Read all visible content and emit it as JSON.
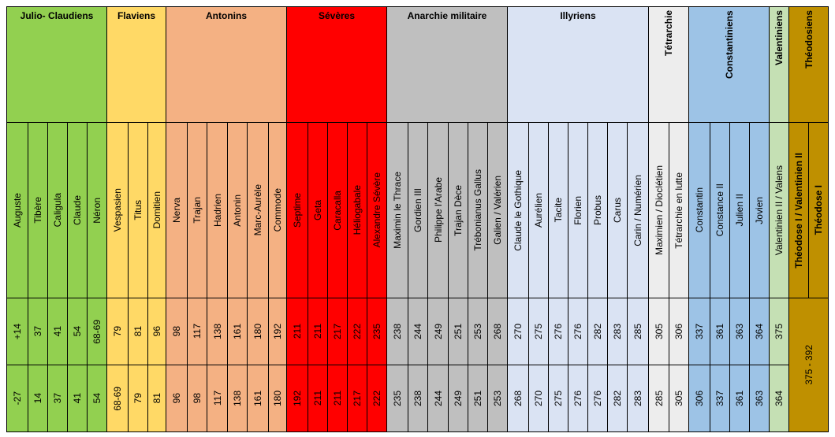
{
  "table": {
    "groups": [
      {
        "name": "Julio- Claudiens",
        "color": "#92d050",
        "rotated": false,
        "emperors": [
          {
            "name": "Auguste",
            "end": "+14",
            "start": "-27"
          },
          {
            "name": "Tibère",
            "end": "37",
            "start": "14"
          },
          {
            "name": "Caligula",
            "end": "41",
            "start": "37"
          },
          {
            "name": "Claude",
            "end": "54",
            "start": "41"
          },
          {
            "name": "Néron",
            "end": "68-69",
            "start": "54"
          }
        ]
      },
      {
        "name": "Flaviens",
        "color": "#ffd966",
        "rotated": false,
        "emperors": [
          {
            "name": "Vespasien",
            "end": "79",
            "start": "68-69"
          },
          {
            "name": "Titus",
            "end": "81",
            "start": "79"
          },
          {
            "name": "Domitien",
            "end": "96",
            "start": "81"
          }
        ]
      },
      {
        "name": "Antonins",
        "color": "#f4b183",
        "rotated": false,
        "emperors": [
          {
            "name": "Nerva",
            "end": "98",
            "start": "96"
          },
          {
            "name": "Trajan",
            "end": "117",
            "start": "98"
          },
          {
            "name": "Hadrien",
            "end": "138",
            "start": "117"
          },
          {
            "name": "Antonin",
            "end": "161",
            "start": "138"
          },
          {
            "name": "Marc-Aurèle",
            "end": "180",
            "start": "161"
          },
          {
            "name": "Commode",
            "end": "192",
            "start": "180"
          }
        ]
      },
      {
        "name": "Sévères",
        "color": "#ff0000",
        "rotated": false,
        "emperors": [
          {
            "name": "Septime",
            "end": "211",
            "start": "192"
          },
          {
            "name": "Geta",
            "end": "211",
            "start": "211"
          },
          {
            "name": "Caracalla",
            "end": "217",
            "start": "211"
          },
          {
            "name": "Héliogabale",
            "end": "222",
            "start": "217"
          },
          {
            "name": "Alexandre Sévère",
            "end": "235",
            "start": "222"
          }
        ]
      },
      {
        "name": "Anarchie militaire",
        "color": "#bfbfbf",
        "rotated": false,
        "emperors": [
          {
            "name": "Maximin le Thrace",
            "end": "238",
            "start": "235"
          },
          {
            "name": "Gordien III",
            "end": "244",
            "start": "238"
          },
          {
            "name": "Philippe l'Arabe",
            "end": "249",
            "start": "244"
          },
          {
            "name": "Trajan Dèce",
            "end": "251",
            "start": "249"
          },
          {
            "name": "Trébonianus  Gallus",
            "end": "253",
            "start": "251"
          },
          {
            "name": "Galien / Valérien",
            "end": "268",
            "start": "253"
          }
        ]
      },
      {
        "name": "Illyriens",
        "color": "#dae3f3",
        "rotated": false,
        "emperors": [
          {
            "name": "Claude le Gothique",
            "end": "270",
            "start": "268"
          },
          {
            "name": "Aurélien",
            "end": "275",
            "start": "270"
          },
          {
            "name": "Tacite",
            "end": "276",
            "start": "275"
          },
          {
            "name": "Florien",
            "end": "276",
            "start": "276"
          },
          {
            "name": "Probus",
            "end": "282",
            "start": "276"
          },
          {
            "name": "Carus",
            "end": "283",
            "start": "282"
          },
          {
            "name": "Carin / Numérien",
            "end": "285",
            "start": "283"
          }
        ]
      },
      {
        "name": "Tétrarchie",
        "color": "#ededed",
        "rotated": true,
        "emperors": [
          {
            "name": "Maximien / Dioclétien",
            "end": "305",
            "start": "285"
          },
          {
            "name": "Tétrarchie en lutte",
            "end": "306",
            "start": "305"
          }
        ]
      },
      {
        "name": "Constantiniens",
        "color": "#9dc3e6",
        "rotated": true,
        "emperors": [
          {
            "name": "Constantin",
            "end": "337",
            "start": "306"
          },
          {
            "name": "Constance II",
            "end": "361",
            "start": "337"
          },
          {
            "name": "Julien II",
            "end": "363",
            "start": "361"
          },
          {
            "name": "Jovien",
            "end": "364",
            "start": "363"
          }
        ]
      },
      {
        "name": "Valentiniens",
        "color": "#c5e0b4",
        "rotated": true,
        "emperors": [
          {
            "name": "Valentinien II / Valens",
            "end": "375",
            "start": "364"
          }
        ]
      },
      {
        "name": "Théodosiens",
        "color": "#bf9000",
        "rotated": true,
        "years": "375 - 392",
        "emperors": [
          {
            "name": "Théodose I / Valentinien II"
          },
          {
            "name": "Théodose I"
          }
        ]
      }
    ]
  }
}
